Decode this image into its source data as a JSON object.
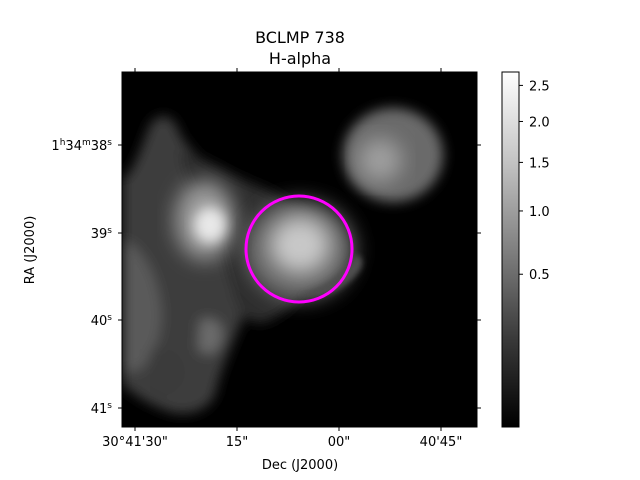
{
  "chart_data": {
    "type": "heatmap",
    "title": "BCLMP 738",
    "subtitle": "H-alpha",
    "xlabel": "Dec (J2000)",
    "ylabel": "RA (J2000)",
    "x_ticks": [
      "30°41'30\"",
      "15\"",
      "00\"",
      "40'45\""
    ],
    "y_ticks": [
      {
        "base": "1",
        "h": "h",
        "m_val": "34",
        "m": "m",
        "s_val": "38",
        "s": "s"
      },
      {
        "base": "39",
        "s": "s"
      },
      {
        "base": "40",
        "s": "s"
      },
      {
        "base": "41",
        "s": "s"
      }
    ],
    "colorbar": {
      "colormap": "gray",
      "scale": "nonlinear (sqrt-like)",
      "ticks": [
        "2.5",
        "2.0",
        "1.5",
        "1.0",
        "0.5"
      ],
      "tick_values": [
        2.5,
        2.0,
        1.5,
        1.0,
        0.5
      ],
      "range": [
        0,
        2.7
      ]
    },
    "marker": {
      "shape": "circle",
      "color": "#ff00ff",
      "region": "BCLMP 738"
    },
    "emission_blobs": [
      {
        "name": "central-knot",
        "peak_value": 1.9
      },
      {
        "name": "upper-right-knot",
        "peak_value": 1.6
      },
      {
        "name": "left-knot",
        "peak_value": 2.2
      },
      {
        "name": "left-lower-diffuse",
        "peak_value": 0.8
      }
    ],
    "grid": false
  }
}
